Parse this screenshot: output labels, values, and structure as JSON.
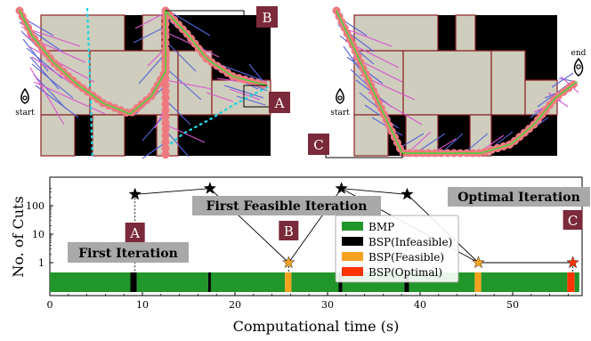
{
  "colors": {
    "bmp": "#21962a",
    "bsp_infeasible": "#000000",
    "bsp_feasible": "#f5a21f",
    "bsp_optimal": "#ff3300",
    "callout_box": "#7a2a3a",
    "gray_box": "#a9a9a9",
    "map_cell": "#cfcdbd",
    "map_wall": "#000000",
    "map_border": "#8b2222",
    "path_green": "#3ddc2e",
    "path_pink": "#ee7a80",
    "branch_blue": "#5565d8",
    "branch_magenta": "#d655d0",
    "cut_cyan": "#22d3e0"
  },
  "maps": {
    "left": {
      "start_label": "start",
      "end_label": "end",
      "callouts": [
        "A",
        "B"
      ]
    },
    "right": {
      "start_label": "start",
      "end_label": "end",
      "callouts": [
        "C"
      ]
    }
  },
  "chart_data": {
    "type": "scatter",
    "xlabel": "Computational time (s)",
    "ylabel": "No. of Cuts",
    "xlim": [
      0,
      57.5
    ],
    "yscale": "log",
    "xticks": [
      "0",
      "10",
      "20",
      "30",
      "40",
      "50"
    ],
    "yticks": [
      "1",
      "10",
      "100"
    ],
    "series": [
      {
        "marker": "black-star",
        "x": [
          9.2,
          17.3,
          31.5,
          38.6
        ],
        "y": [
          250,
          400,
          400,
          250
        ]
      },
      {
        "marker": "orange-star",
        "x": [
          25.8,
          46.3
        ],
        "y": [
          1,
          1
        ]
      },
      {
        "marker": "red-star",
        "x": [
          56.5
        ],
        "y": [
          1
        ]
      }
    ],
    "lines": [
      [
        [
          9.2,
          250
        ],
        [
          17.3,
          400
        ],
        [
          25.8,
          1
        ]
      ],
      [
        [
          25.8,
          1
        ],
        [
          31.5,
          400
        ],
        [
          38.6,
          250
        ]
      ],
      [
        [
          31.5,
          400
        ],
        [
          46.3,
          1
        ]
      ],
      [
        [
          38.6,
          250
        ],
        [
          46.3,
          1
        ],
        [
          56.5,
          1
        ]
      ]
    ],
    "timeline_segments": [
      {
        "type": "BMP",
        "x0": 0,
        "x1": 8.7
      },
      {
        "type": "BSP(Infeasible)",
        "x0": 8.7,
        "x1": 9.4
      },
      {
        "type": "BMP",
        "x0": 9.4,
        "x1": 17.1
      },
      {
        "type": "BSP(Infeasible)",
        "x0": 17.1,
        "x1": 17.4
      },
      {
        "type": "BMP",
        "x0": 17.4,
        "x1": 25.4
      },
      {
        "type": "BSP(Feasible)",
        "x0": 25.4,
        "x1": 26.1
      },
      {
        "type": "BMP",
        "x0": 26.1,
        "x1": 31.2
      },
      {
        "type": "BSP(Infeasible)",
        "x0": 31.2,
        "x1": 31.6
      },
      {
        "type": "BMP",
        "x0": 31.6,
        "x1": 38.3
      },
      {
        "type": "BSP(Infeasible)",
        "x0": 38.3,
        "x1": 38.8
      },
      {
        "type": "BMP",
        "x0": 38.8,
        "x1": 45.9
      },
      {
        "type": "BSP(Feasible)",
        "x0": 45.9,
        "x1": 46.6
      },
      {
        "type": "BMP",
        "x0": 46.6,
        "x1": 55.9
      },
      {
        "type": "BSP(Optimal)",
        "x0": 55.9,
        "x1": 56.7
      },
      {
        "type": "BMP",
        "x0": 56.7,
        "x1": 57.2
      }
    ],
    "legend": [
      "BMP",
      "BSP(Infeasible)",
      "BSP(Feasible)",
      "BSP(Optimal)"
    ],
    "legend_position": "center-right",
    "annotations": [
      {
        "text": "First Iteration",
        "style": "gray-box"
      },
      {
        "text": "First Feasible Iteration",
        "style": "gray-box"
      },
      {
        "text": "Optimal Iteration",
        "style": "gray-box"
      },
      {
        "text": "A",
        "x": 9.2,
        "style": "callout"
      },
      {
        "text": "B",
        "x": 25.8,
        "style": "callout"
      },
      {
        "text": "C",
        "x": 56.5,
        "style": "callout"
      }
    ]
  }
}
